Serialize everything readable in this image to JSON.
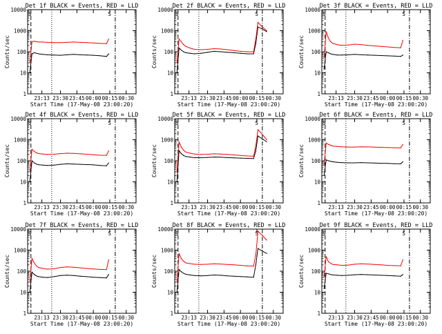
{
  "shared": {
    "ylabel": "Counts/sec",
    "xlabel": "Start Time (17-May-08 23:00:20)",
    "ylim": [
      1,
      10000
    ],
    "yscale": "log",
    "yticks": [
      {
        "v": 1,
        "label": "1"
      },
      {
        "v": 10,
        "label": "10"
      },
      {
        "v": 100,
        "label": "100"
      },
      {
        "v": 1000,
        "label": "1000"
      },
      {
        "v": 10000,
        "label": "10000"
      }
    ],
    "xlim_min": [
      0,
      99
    ],
    "xticks": [
      {
        "v": 13,
        "label": "23:13"
      },
      {
        "v": 30,
        "label": "23:30"
      },
      {
        "v": 45,
        "label": "23:45"
      },
      {
        "v": 60,
        "label": "00:00"
      },
      {
        "v": 75,
        "label": "00:15"
      },
      {
        "v": 90,
        "label": "00:30"
      }
    ],
    "colors": {
      "events": "#000000",
      "lld": "#ff0000"
    },
    "marker_label": "S"
  },
  "chart_data": [
    {
      "type": "line",
      "title": "Det 1f BLACK = Events, RED = LLD",
      "panel": 1,
      "x": [
        2,
        4,
        6,
        8,
        10,
        14,
        18,
        24,
        30,
        36,
        42,
        48,
        54,
        60,
        66,
        72,
        74
      ],
      "series": [
        {
          "name": "Events",
          "color": "#000000",
          "values": [
            10,
            80,
            90,
            85,
            80,
            75,
            72,
            70,
            68,
            72,
            75,
            72,
            70,
            68,
            65,
            60,
            80
          ]
        },
        {
          "name": "LLD",
          "color": "#ff0000",
          "values": [
            30,
            300,
            320,
            300,
            290,
            290,
            280,
            270,
            270,
            280,
            290,
            280,
            270,
            260,
            250,
            240,
            400
          ]
        }
      ]
    },
    {
      "type": "line",
      "title": "Det 2f BLACK = Events, RED = LLD",
      "panel": 2,
      "x": [
        2,
        4,
        6,
        8,
        10,
        14,
        18,
        24,
        30,
        36,
        42,
        48,
        54,
        60,
        66,
        72,
        74,
        76,
        80,
        84
      ],
      "series": [
        {
          "name": "Events",
          "color": "#000000",
          "values": [
            10,
            150,
            120,
            100,
            90,
            85,
            80,
            85,
            95,
            105,
            100,
            95,
            90,
            85,
            80,
            80,
            250,
            1500,
            1200,
            900
          ]
        },
        {
          "name": "LLD",
          "color": "#ff0000",
          "values": [
            30,
            400,
            300,
            220,
            180,
            150,
            130,
            125,
            130,
            140,
            135,
            125,
            115,
            105,
            100,
            100,
            400,
            2500,
            1500,
            1000
          ]
        }
      ]
    },
    {
      "type": "line",
      "title": "Det 3f BLACK = Events, RED = LLD",
      "panel": 3,
      "x": [
        2,
        4,
        6,
        8,
        10,
        14,
        18,
        24,
        30,
        36,
        42,
        48,
        54,
        60,
        66,
        72,
        74
      ],
      "series": [
        {
          "name": "Events",
          "color": "#000000",
          "values": [
            15,
            100,
            90,
            80,
            75,
            70,
            70,
            72,
            75,
            72,
            70,
            68,
            66,
            64,
            62,
            60,
            70
          ]
        },
        {
          "name": "LLD",
          "color": "#ff0000",
          "values": [
            50,
            900,
            450,
            300,
            250,
            220,
            200,
            210,
            230,
            220,
            200,
            190,
            180,
            170,
            160,
            155,
            350
          ]
        }
      ]
    },
    {
      "type": "line",
      "title": "Det 4f BLACK = Events, RED = LLD",
      "panel": 4,
      "x": [
        2,
        4,
        6,
        8,
        10,
        14,
        18,
        24,
        30,
        36,
        42,
        48,
        54,
        60,
        66,
        72,
        74
      ],
      "series": [
        {
          "name": "Events",
          "color": "#000000",
          "values": [
            10,
            100,
            80,
            70,
            65,
            62,
            60,
            62,
            68,
            72,
            70,
            68,
            66,
            64,
            60,
            58,
            80
          ]
        },
        {
          "name": "LLD",
          "color": "#ff0000",
          "values": [
            30,
            350,
            280,
            240,
            220,
            210,
            200,
            205,
            220,
            230,
            225,
            215,
            205,
            195,
            185,
            180,
            300
          ]
        }
      ]
    },
    {
      "type": "line",
      "title": "Det 5f BLACK = Events, RED = LLD",
      "panel": 5,
      "x": [
        2,
        4,
        6,
        8,
        10,
        14,
        18,
        24,
        30,
        36,
        42,
        48,
        54,
        60,
        66,
        72,
        74,
        76,
        80,
        84
      ],
      "series": [
        {
          "name": "Events",
          "color": "#000000",
          "values": [
            10,
            300,
            220,
            180,
            160,
            150,
            140,
            140,
            145,
            150,
            148,
            142,
            138,
            134,
            130,
            128,
            300,
            1500,
            1100,
            800
          ]
        },
        {
          "name": "LLD",
          "color": "#ff0000",
          "values": [
            30,
            800,
            450,
            320,
            260,
            230,
            210,
            200,
            205,
            215,
            210,
            200,
            190,
            180,
            170,
            165,
            500,
            3000,
            1800,
            1000
          ]
        }
      ]
    },
    {
      "type": "line",
      "title": "Det 6f BLACK = Events, RED = LLD",
      "panel": 6,
      "x": [
        2,
        4,
        6,
        8,
        10,
        14,
        18,
        24,
        30,
        36,
        42,
        48,
        54,
        60,
        66,
        72,
        74
      ],
      "series": [
        {
          "name": "Events",
          "color": "#000000",
          "values": [
            20,
            110,
            100,
            95,
            90,
            85,
            82,
            80,
            80,
            82,
            80,
            78,
            76,
            75,
            73,
            72,
            90
          ]
        },
        {
          "name": "LLD",
          "color": "#ff0000",
          "values": [
            60,
            700,
            600,
            550,
            500,
            480,
            460,
            450,
            450,
            460,
            455,
            445,
            435,
            425,
            415,
            410,
            600
          ]
        }
      ]
    },
    {
      "type": "line",
      "title": "Det 7f BLACK = Events, RED = LLD",
      "panel": 7,
      "x": [
        2,
        4,
        6,
        8,
        10,
        14,
        18,
        24,
        30,
        36,
        42,
        48,
        54,
        60,
        66,
        72,
        74
      ],
      "series": [
        {
          "name": "Events",
          "color": "#000000",
          "values": [
            10,
            90,
            70,
            60,
            55,
            52,
            50,
            55,
            62,
            65,
            62,
            58,
            55,
            52,
            50,
            48,
            70
          ]
        },
        {
          "name": "LLD",
          "color": "#ff0000",
          "values": [
            30,
            400,
            250,
            180,
            150,
            135,
            125,
            130,
            150,
            160,
            155,
            145,
            135,
            128,
            122,
            120,
            350
          ]
        }
      ]
    },
    {
      "type": "line",
      "title": "Det 8f BLACK = Events, RED = LLD",
      "panel": 8,
      "x": [
        2,
        4,
        6,
        8,
        10,
        14,
        18,
        24,
        30,
        36,
        42,
        48,
        54,
        60,
        66,
        72,
        74,
        76,
        80,
        84
      ],
      "series": [
        {
          "name": "Events",
          "color": "#000000",
          "values": [
            10,
            120,
            95,
            80,
            72,
            66,
            62,
            60,
            62,
            66,
            64,
            60,
            58,
            56,
            54,
            52,
            200,
            1200,
            900,
            700
          ]
        },
        {
          "name": "LLD",
          "color": "#ff0000",
          "values": [
            30,
            700,
            400,
            300,
            250,
            230,
            215,
            210,
            215,
            225,
            220,
            210,
            200,
            190,
            180,
            175,
            600,
            8000,
            5000,
            3000
          ]
        }
      ]
    },
    {
      "type": "line",
      "title": "Det 9f BLACK = Events, RED = LLD",
      "panel": 9,
      "x": [
        2,
        4,
        6,
        8,
        10,
        14,
        18,
        24,
        30,
        36,
        42,
        48,
        54,
        60,
        66,
        72,
        74
      ],
      "series": [
        {
          "name": "Events",
          "color": "#000000",
          "values": [
            15,
            80,
            75,
            70,
            66,
            64,
            62,
            64,
            68,
            70,
            68,
            66,
            64,
            62,
            60,
            58,
            70
          ]
        },
        {
          "name": "LLD",
          "color": "#ff0000",
          "values": [
            50,
            500,
            280,
            240,
            210,
            200,
            190,
            195,
            215,
            225,
            220,
            210,
            200,
            190,
            185,
            180,
            350
          ]
        }
      ]
    }
  ]
}
